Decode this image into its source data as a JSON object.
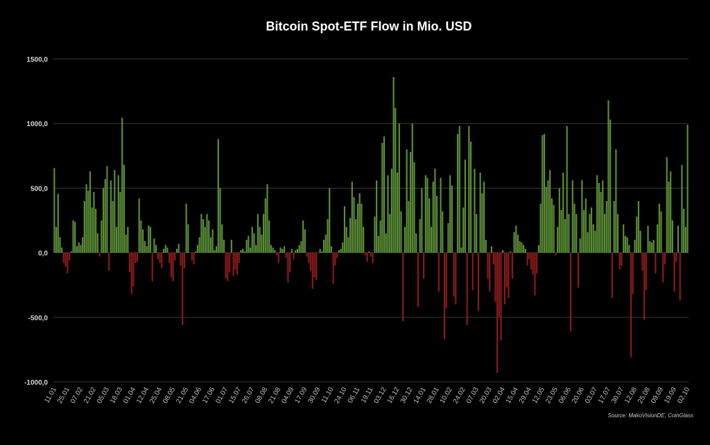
{
  "chart_data": {
    "type": "bar",
    "title": "Bitcoin Spot-ETF Flow in Mio. USD",
    "source": "Source: MakoVisionDE, CoinGlass",
    "pos_color": "#5b8f35",
    "neg_color": "#8c1a1a",
    "grid": true,
    "ylim": [
      -1000,
      1500
    ],
    "yticks": [
      {
        "value": -1000,
        "label": "-1000,0"
      },
      {
        "value": -500,
        "label": "-500,0"
      },
      {
        "value": 0,
        "label": "0,0"
      },
      {
        "value": 500,
        "label": "500,0"
      },
      {
        "value": 1000,
        "label": "1000,0"
      },
      {
        "value": 1500,
        "label": "1500,0"
      }
    ],
    "categories": [
      "11.01",
      null,
      null,
      null,
      null,
      null,
      null,
      "25.01",
      null,
      null,
      null,
      null,
      null,
      null,
      "07.02",
      null,
      null,
      null,
      null,
      null,
      null,
      "21.02",
      null,
      null,
      null,
      null,
      null,
      null,
      "05.03",
      null,
      null,
      null,
      null,
      null,
      null,
      "18.03",
      null,
      null,
      null,
      null,
      null,
      null,
      "01.04",
      null,
      null,
      null,
      null,
      null,
      null,
      "12.04",
      null,
      null,
      null,
      null,
      null,
      null,
      "25.04",
      null,
      null,
      null,
      null,
      null,
      null,
      "08.05",
      null,
      null,
      null,
      null,
      null,
      null,
      "21.05",
      null,
      null,
      null,
      null,
      null,
      null,
      "04.06",
      null,
      null,
      null,
      null,
      null,
      null,
      "17.06",
      null,
      null,
      null,
      null,
      null,
      null,
      "01.07",
      null,
      null,
      null,
      null,
      null,
      null,
      "15.07",
      null,
      null,
      null,
      null,
      null,
      null,
      "26.07",
      null,
      null,
      null,
      null,
      null,
      null,
      "08.08",
      null,
      null,
      null,
      null,
      null,
      null,
      "21.08",
      null,
      null,
      null,
      null,
      null,
      null,
      "04.09",
      null,
      null,
      null,
      null,
      null,
      null,
      "17.09",
      null,
      null,
      null,
      null,
      null,
      null,
      "30.09",
      null,
      null,
      null,
      null,
      null,
      null,
      "11.10",
      null,
      null,
      null,
      null,
      null,
      null,
      "24.10",
      null,
      null,
      null,
      null,
      null,
      null,
      "06.11",
      null,
      null,
      null,
      null,
      null,
      null,
      "19.11",
      null,
      null,
      null,
      null,
      null,
      null,
      "03.12",
      null,
      null,
      null,
      null,
      null,
      null,
      "16.12",
      null,
      null,
      null,
      null,
      null,
      null,
      "30.12",
      null,
      null,
      null,
      null,
      null,
      null,
      "14.01",
      null,
      null,
      null,
      null,
      null,
      null,
      "28.01",
      null,
      null,
      null,
      null,
      null,
      null,
      "10.02",
      null,
      null,
      null,
      null,
      null,
      null,
      "24.02",
      null,
      null,
      null,
      null,
      null,
      null,
      "07.03",
      null,
      null,
      null,
      null,
      null,
      null,
      "20.03",
      null,
      null,
      null,
      null,
      null,
      null,
      "02.04",
      null,
      null,
      null,
      null,
      null,
      null,
      "15.04",
      null,
      null,
      null,
      null,
      null,
      null,
      "29.04",
      null,
      null,
      null,
      null,
      null,
      null,
      "12.05",
      null,
      null,
      null,
      null,
      null,
      null,
      "23.05",
      null,
      null,
      null,
      null,
      null,
      null,
      "06.06",
      null,
      null,
      null,
      null,
      null,
      null,
      "20.06",
      null,
      null,
      null,
      null,
      null,
      null,
      "03.07",
      null,
      null,
      null,
      null,
      null,
      null,
      "17.07",
      null,
      null,
      null,
      null,
      null,
      null,
      "30.07",
      null,
      null,
      null,
      null,
      null,
      null,
      "12.08",
      null,
      null,
      null,
      null,
      null,
      null,
      "25.08",
      null,
      null,
      null,
      null,
      null,
      null,
      "09.09",
      null,
      null,
      null,
      null,
      null,
      null,
      "19.09",
      null,
      null,
      null,
      null,
      null,
      null,
      "02.10"
    ],
    "values": [
      655,
      200,
      455,
      120,
      40,
      -80,
      -110,
      -160,
      -60,
      10,
      250,
      240,
      50,
      80,
      60,
      120,
      400,
      530,
      480,
      630,
      350,
      470,
      340,
      150,
      -30,
      250,
      500,
      570,
      670,
      -140,
      560,
      400,
      640,
      200,
      600,
      470,
      1045,
      680,
      140,
      200,
      -150,
      -320,
      -260,
      -80,
      -70,
      420,
      250,
      180,
      90,
      50,
      210,
      200,
      -220,
      110,
      60,
      -50,
      -80,
      -120,
      30,
      60,
      40,
      -80,
      -190,
      -220,
      -60,
      30,
      70,
      -100,
      -560,
      -120,
      380,
      220,
      0,
      -60,
      -90,
      10,
      60,
      120,
      300,
      260,
      200,
      300,
      250,
      120,
      180,
      20,
      50,
      880,
      500,
      220,
      100,
      -200,
      -220,
      -150,
      100,
      -180,
      -130,
      -170,
      -80,
      20,
      30,
      10,
      100,
      130,
      40,
      200,
      150,
      60,
      300,
      200,
      140,
      300,
      420,
      530,
      250,
      60,
      40,
      20,
      -20,
      -80,
      40,
      30,
      50,
      -40,
      -230,
      -150,
      30,
      -50,
      20,
      30,
      60,
      90,
      250,
      180,
      -30,
      -80,
      -140,
      -280,
      -190,
      -210,
      0,
      30,
      10,
      100,
      140,
      260,
      500,
      50,
      -240,
      -100,
      -40,
      20,
      30,
      80,
      360,
      200,
      120,
      270,
      550,
      430,
      260,
      380,
      460,
      380,
      200,
      -20,
      -70,
      10,
      -30,
      -80,
      280,
      560,
      130,
      250,
      850,
      900,
      150,
      600,
      300,
      650,
      1360,
      1120,
      620,
      1000,
      320,
      -530,
      200,
      800,
      400,
      780,
      1000,
      700,
      150,
      -420,
      260,
      500,
      -200,
      600,
      580,
      420,
      200,
      550,
      650,
      440,
      -300,
      580,
      320,
      -670,
      -430,
      230,
      600,
      520,
      -340,
      -400,
      920,
      980,
      40,
      350,
      720,
      -560,
      980,
      860,
      -290,
      650,
      300,
      -450,
      620,
      460,
      550,
      100,
      -200,
      -300,
      50,
      -90,
      -380,
      -930,
      -500,
      -680,
      20,
      -400,
      -270,
      -350,
      10,
      -200,
      160,
      210,
      140,
      90,
      80,
      60,
      30,
      -100,
      -50,
      -130,
      -170,
      -330,
      -160,
      60,
      380,
      910,
      920,
      510,
      560,
      640,
      420,
      370,
      -20,
      200,
      500,
      330,
      620,
      260,
      980,
      300,
      -610,
      560,
      380,
      300,
      -270,
      110,
      560,
      330,
      420,
      160,
      300,
      350,
      220,
      170,
      600,
      540,
      470,
      560,
      300,
      400,
      1180,
      1030,
      -350,
      400,
      800,
      300,
      -130,
      -100,
      220,
      130,
      120,
      60,
      -810,
      -320,
      100,
      280,
      400,
      170,
      -140,
      -520,
      -290,
      210,
      90,
      80,
      100,
      -160,
      220,
      380,
      320,
      -230,
      -90,
      740,
      550,
      630,
      250,
      -300,
      -70,
      210,
      -370,
      680,
      340,
      200,
      990
    ]
  }
}
